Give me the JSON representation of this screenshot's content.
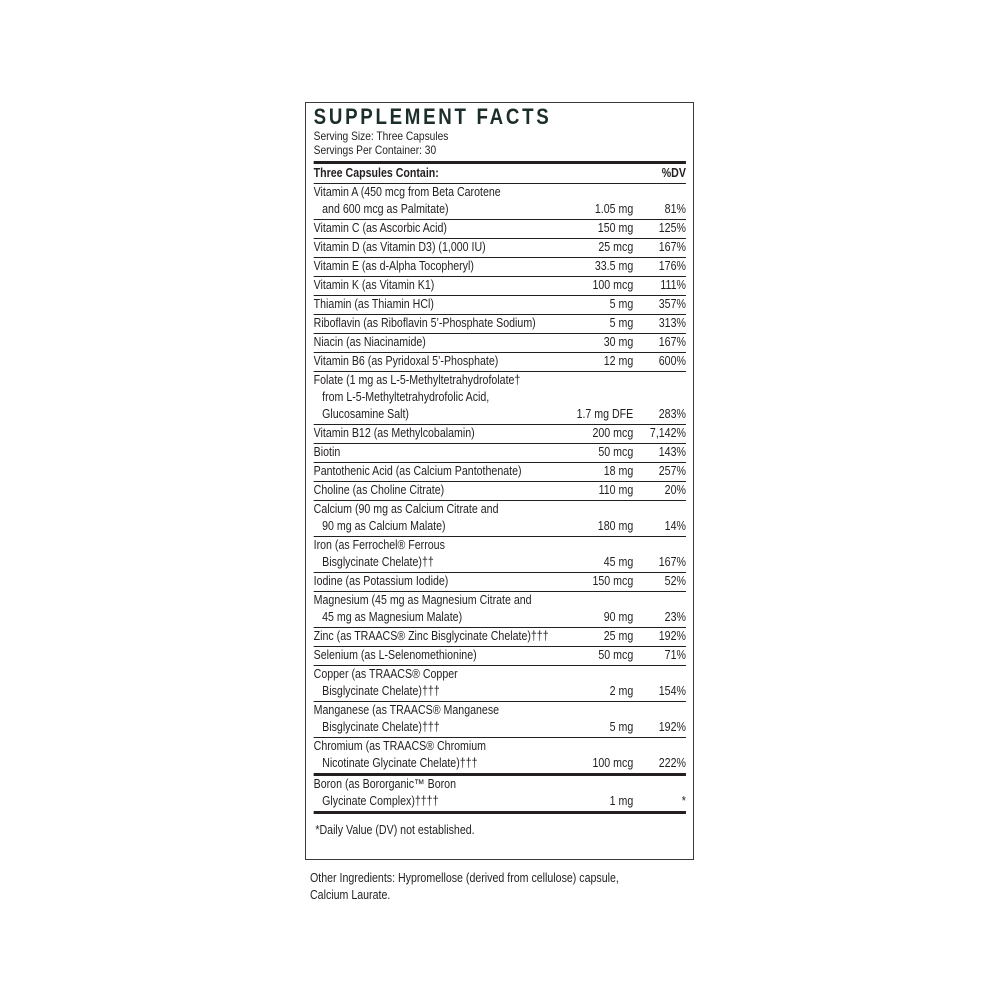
{
  "title": "SUPPLEMENT FACTS",
  "serving_size": "Serving Size: Three Capsules",
  "servings_per_container": "Servings Per Container: 30",
  "header": {
    "left": "Three Capsules Contain:",
    "right": "%DV"
  },
  "rows": [
    {
      "name": [
        "Vitamin A (450 mcg from Beta Carotene",
        "and 600 mcg as Palmitate)"
      ],
      "amount": "1.05 mg",
      "dv": "81%"
    },
    {
      "name": [
        "Vitamin C (as Ascorbic Acid)"
      ],
      "amount": "150 mg",
      "dv": "125%"
    },
    {
      "name": [
        "Vitamin D (as Vitamin D3) (1,000 IU)"
      ],
      "amount": "25 mcg",
      "dv": "167%"
    },
    {
      "name": [
        "Vitamin E (as d-Alpha Tocopheryl)"
      ],
      "amount": "33.5 mg",
      "dv": "176%"
    },
    {
      "name": [
        "Vitamin K (as Vitamin K1)"
      ],
      "amount": "100 mcg",
      "dv": "111%"
    },
    {
      "name": [
        "Thiamin (as Thiamin HCl)"
      ],
      "amount": "5 mg",
      "dv": "357%"
    },
    {
      "name": [
        "Riboflavin (as Riboflavin 5’-Phosphate Sodium)"
      ],
      "amount": "5 mg",
      "dv": "313%"
    },
    {
      "name": [
        "Niacin (as Niacinamide)"
      ],
      "amount": "30 mg",
      "dv": "167%"
    },
    {
      "name": [
        "Vitamin B6 (as Pyridoxal 5’-Phosphate)"
      ],
      "amount": "12 mg",
      "dv": "600%"
    },
    {
      "name": [
        "Folate (1 mg as L-5-Methyltetrahydrofolate†",
        "from L-5-Methyltetrahydrofolic Acid,",
        "Glucosamine Salt)"
      ],
      "amount": "1.7 mg DFE",
      "dv": "283%"
    },
    {
      "name": [
        "Vitamin B12 (as Methylcobalamin)"
      ],
      "amount": "200 mcg",
      "dv": "7,142%"
    },
    {
      "name": [
        "Biotin"
      ],
      "amount": "50 mcg",
      "dv": "143%"
    },
    {
      "name": [
        "Pantothenic Acid (as Calcium Pantothenate)"
      ],
      "amount": "18 mg",
      "dv": "257%"
    },
    {
      "name": [
        "Choline (as Choline Citrate)"
      ],
      "amount": "110 mg",
      "dv": "20%"
    },
    {
      "name": [
        "Calcium (90 mg as Calcium Citrate and",
        "90 mg as Calcium Malate)"
      ],
      "amount": "180 mg",
      "dv": "14%"
    },
    {
      "name": [
        "Iron (as Ferrochel® Ferrous",
        "Bisglycinate Chelate)††"
      ],
      "amount": "45 mg",
      "dv": "167%"
    },
    {
      "name": [
        "Iodine (as Potassium Iodide)"
      ],
      "amount": "150 mcg",
      "dv": "52%"
    },
    {
      "name": [
        "Magnesium (45 mg as Magnesium Citrate and",
        "45 mg as Magnesium Malate)"
      ],
      "amount": "90 mg",
      "dv": "23%"
    },
    {
      "name": [
        "Zinc (as TRAACS® Zinc Bisglycinate Chelate)†††"
      ],
      "amount": "25 mg",
      "dv": "192%"
    },
    {
      "name": [
        "Selenium (as L-Selenomethionine)"
      ],
      "amount": "50 mcg",
      "dv": "71%"
    },
    {
      "name": [
        "Copper (as TRAACS® Copper",
        "Bisglycinate Chelate)†††"
      ],
      "amount": "2 mg",
      "dv": "154%"
    },
    {
      "name": [
        "Manganese (as TRAACS® Manganese",
        "Bisglycinate Chelate)†††"
      ],
      "amount": "5 mg",
      "dv": "192%"
    },
    {
      "name": [
        "Chromium (as TRAACS® Chromium",
        "Nicotinate Glycinate Chelate)†††"
      ],
      "amount": "100 mcg",
      "dv": "222%",
      "thick": true
    },
    {
      "name": [
        "Boron (as Bororganic™ Boron",
        "Glycinate Complex)††††"
      ],
      "amount": "1 mg",
      "dv": "*",
      "thick": true
    }
  ],
  "footnote": "*Daily Value (DV) not established.",
  "other_ingredients": [
    "Other Ingredients: Hypromellose (derived from cellulose) capsule,",
    "Calcium Laurate."
  ]
}
